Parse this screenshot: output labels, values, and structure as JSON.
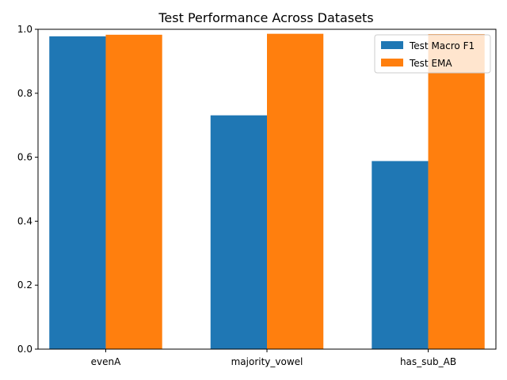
{
  "chart_data": {
    "type": "bar",
    "title": "Test Performance Across Datasets",
    "xlabel": "",
    "ylabel": "",
    "categories": [
      "evenA",
      "majority_vowel",
      "has_sub_AB"
    ],
    "series": [
      {
        "name": "Test Macro F1",
        "color": "#1f77b4",
        "values": [
          0.978,
          0.731,
          0.588
        ]
      },
      {
        "name": "Test EMA",
        "color": "#ff7f0e",
        "values": [
          0.983,
          0.986,
          0.985
        ]
      }
    ],
    "ylim": [
      0,
      1.0
    ],
    "yticks": [
      0.0,
      0.2,
      0.4,
      0.6,
      0.8,
      1.0
    ],
    "ytick_labels": [
      "0.0",
      "0.2",
      "0.4",
      "0.6",
      "0.8",
      "1.0"
    ],
    "grid": false,
    "legend_position": "top-right"
  }
}
